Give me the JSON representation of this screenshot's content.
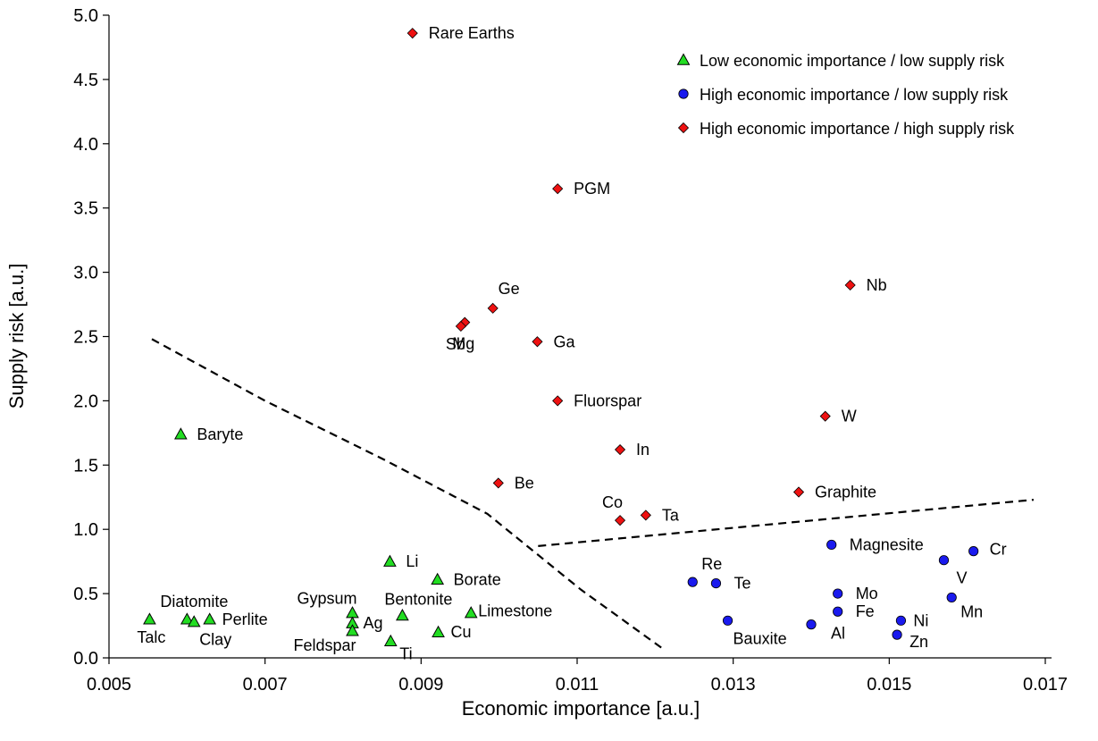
{
  "chart_data": {
    "type": "scatter",
    "xlabel": "Economic importance [a.u.]",
    "ylabel": "Supply risk [a.u.]",
    "xlim": [
      0.005,
      0.017
    ],
    "ylim": [
      0.0,
      5.0
    ],
    "xticks": [
      "0.005",
      "0.007",
      "0.009",
      "0.011",
      "0.013",
      "0.015",
      "0.017"
    ],
    "yticks": [
      "0.0",
      "0.5",
      "1.0",
      "1.5",
      "2.0",
      "2.5",
      "3.0",
      "3.5",
      "4.0",
      "4.5",
      "5.0"
    ],
    "grid": false,
    "legend_position": "top-right",
    "series": [
      {
        "name": "Low economic importance / low supply risk",
        "marker": "triangle",
        "color": "#22dd22",
        "points": [
          {
            "label": "Baryte",
            "x": 0.00592,
            "y": 1.74
          },
          {
            "label": "Talc",
            "x": 0.00552,
            "y": 0.3
          },
          {
            "label": "Diatomite",
            "x": 0.006,
            "y": 0.3
          },
          {
            "label": "Clay",
            "x": 0.00609,
            "y": 0.28
          },
          {
            "label": "Perlite",
            "x": 0.00629,
            "y": 0.3
          },
          {
            "label": "Gypsum",
            "x": 0.00812,
            "y": 0.35
          },
          {
            "label": "Ag",
            "x": 0.00812,
            "y": 0.27
          },
          {
            "label": "Feldspar",
            "x": 0.00812,
            "y": 0.21
          },
          {
            "label": "Li",
            "x": 0.0086,
            "y": 0.75
          },
          {
            "label": "Ti",
            "x": 0.00861,
            "y": 0.13
          },
          {
            "label": "Bentonite",
            "x": 0.00876,
            "y": 0.33
          },
          {
            "label": "Borate",
            "x": 0.00921,
            "y": 0.61
          },
          {
            "label": "Cu",
            "x": 0.00922,
            "y": 0.2
          },
          {
            "label": "Limestone",
            "x": 0.00964,
            "y": 0.35
          }
        ]
      },
      {
        "name": "High economic importance / low supply risk",
        "marker": "circle",
        "color": "#1a1aee",
        "points": [
          {
            "label": "Re",
            "x": 0.01248,
            "y": 0.59
          },
          {
            "label": "Te",
            "x": 0.01278,
            "y": 0.58
          },
          {
            "label": "Bauxite",
            "x": 0.01293,
            "y": 0.29
          },
          {
            "label": "Al",
            "x": 0.014,
            "y": 0.26
          },
          {
            "label": "Magnesite",
            "x": 0.01426,
            "y": 0.88
          },
          {
            "label": "Mo",
            "x": 0.01434,
            "y": 0.5
          },
          {
            "label": "Fe",
            "x": 0.01434,
            "y": 0.36
          },
          {
            "label": "Zn",
            "x": 0.0151,
            "y": 0.18
          },
          {
            "label": "Ni",
            "x": 0.01515,
            "y": 0.29
          },
          {
            "label": "V",
            "x": 0.0157,
            "y": 0.76
          },
          {
            "label": "Mn",
            "x": 0.0158,
            "y": 0.47
          },
          {
            "label": "Cr",
            "x": 0.01608,
            "y": 0.83
          }
        ]
      },
      {
        "name": "High economic importance / high supply risk",
        "marker": "diamond",
        "color": "#ee1111",
        "points": [
          {
            "label": "Rare Earths",
            "x": 0.00889,
            "y": 4.86
          },
          {
            "label": "PGM",
            "x": 0.01075,
            "y": 3.65
          },
          {
            "label": "Nb",
            "x": 0.0145,
            "y": 2.9
          },
          {
            "label": "Ge",
            "x": 0.00992,
            "y": 2.72
          },
          {
            "label": "Mg",
            "x": 0.00956,
            "y": 2.61
          },
          {
            "label": "Sb",
            "x": 0.00951,
            "y": 2.58
          },
          {
            "label": "Ga",
            "x": 0.01049,
            "y": 2.46
          },
          {
            "label": "Fluorspar",
            "x": 0.01075,
            "y": 2.0
          },
          {
            "label": "W",
            "x": 0.01418,
            "y": 1.88
          },
          {
            "label": "In",
            "x": 0.01155,
            "y": 1.62
          },
          {
            "label": "Be",
            "x": 0.00999,
            "y": 1.36
          },
          {
            "label": "Graphite",
            "x": 0.01384,
            "y": 1.29
          },
          {
            "label": "Ta",
            "x": 0.01188,
            "y": 1.11
          },
          {
            "label": "Co",
            "x": 0.01155,
            "y": 1.07
          }
        ]
      }
    ],
    "boundary_lines": [
      {
        "style": "dashed",
        "points": [
          [
            0.00555,
            2.48
          ],
          [
            0.007,
            2.0
          ],
          [
            0.0085,
            1.55
          ],
          [
            0.00985,
            1.12
          ],
          [
            0.01105,
            0.53
          ],
          [
            0.0121,
            0.07
          ]
        ]
      },
      {
        "style": "dashed",
        "points": [
          [
            0.0105,
            0.87
          ],
          [
            0.01685,
            1.23
          ]
        ]
      }
    ]
  }
}
